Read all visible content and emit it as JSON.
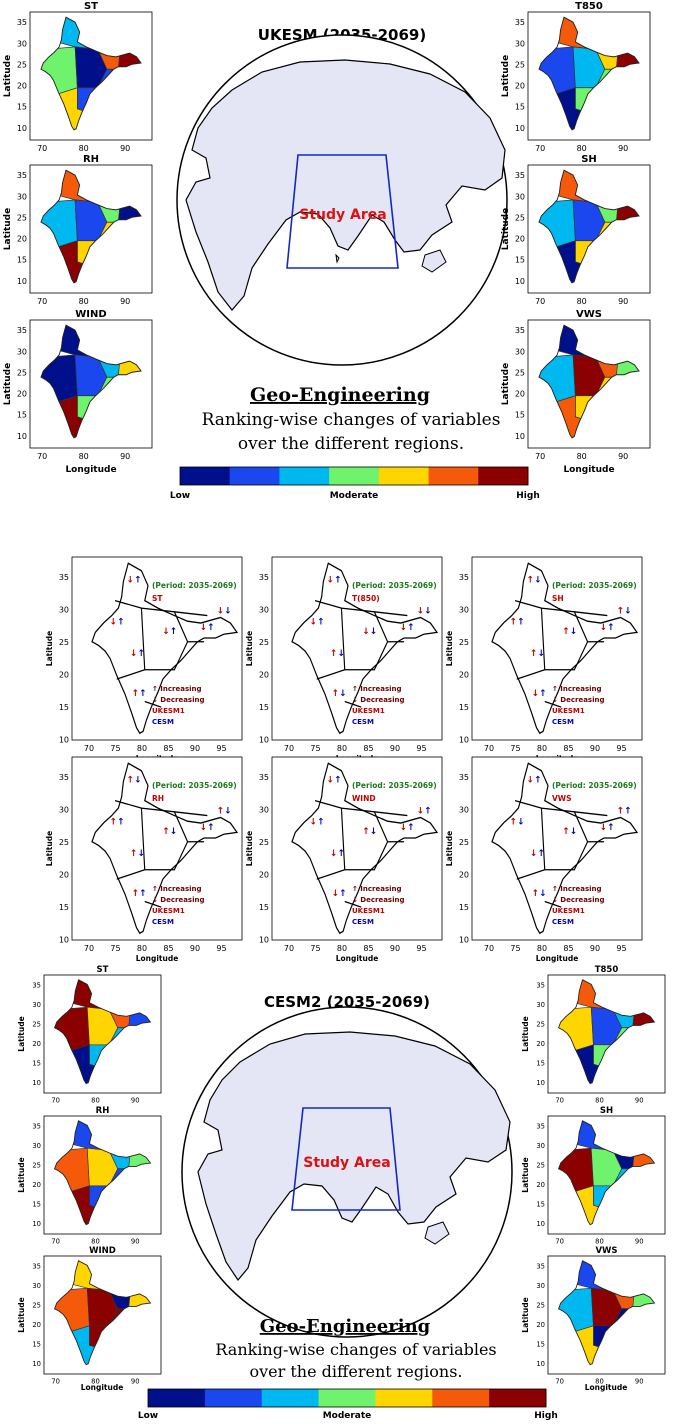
{
  "top_section": {
    "title": "UKESM (2035-2069)",
    "study_area_label": "Study Area",
    "heading": "Geo-Engineering",
    "caption_line1": "Ranking-wise changes of variables",
    "caption_line2": "over the different regions.",
    "maps": [
      {
        "title": "ST",
        "colors": [
          "#00b8f0",
          "#6ff36c",
          "#000f8a",
          "#f55a0a",
          "#8b0000",
          "#1b47ef",
          "#ffd500"
        ]
      },
      {
        "title": "T850",
        "colors": [
          "#f55a0a",
          "#1b47ef",
          "#00b8f0",
          "#ffd500",
          "#8b0000",
          "#6ff36c",
          "#000f8a"
        ]
      },
      {
        "title": "RH",
        "colors": [
          "#f55a0a",
          "#00b8f0",
          "#1b47ef",
          "#6ff36c",
          "#000f8a",
          "#ffd500",
          "#8b0000"
        ]
      },
      {
        "title": "SH",
        "colors": [
          "#f55a0a",
          "#00b8f0",
          "#1b47ef",
          "#6ff36c",
          "#8b0000",
          "#ffd500",
          "#000f8a"
        ]
      },
      {
        "title": "WIND",
        "colors": [
          "#000f8a",
          "#000f8a",
          "#1b47ef",
          "#00b8f0",
          "#ffd500",
          "#6ff36c",
          "#8b0000"
        ]
      },
      {
        "title": "VWS",
        "colors": [
          "#000f8a",
          "#00b8f0",
          "#8b0000",
          "#f55a0a",
          "#6ff36c",
          "#ffd500",
          "#f55a0a"
        ]
      }
    ],
    "axes": {
      "ylabel": "Latitude",
      "xlabel": "Longitude",
      "yticks": [
        "35",
        "30",
        "25",
        "20",
        "15",
        "10"
      ],
      "xticks": [
        "70",
        "80",
        "90"
      ]
    }
  },
  "colorbar": {
    "colors": [
      "#000f8a",
      "#1b47ef",
      "#00b8f0",
      "#6ff36c",
      "#ffd500",
      "#f55a0a",
      "#8b0000"
    ],
    "low": "Low",
    "moderate": "Moderate",
    "high": "High"
  },
  "middle_section": {
    "period": "(Period: 2035-2069)",
    "legend": {
      "increasing": "↑ Increasing",
      "decreasing": "↓ Decreasing",
      "model1": "UKESM1",
      "model2": "CESM"
    },
    "xticks": [
      "70",
      "75",
      "80",
      "85",
      "90",
      "95"
    ],
    "yticks": [
      "35",
      "30",
      "25",
      "20",
      "15",
      "10"
    ],
    "ylabel": "Latitude",
    "xlabel": "Longitude",
    "panels": [
      {
        "var": "ST",
        "arrows": [
          "↓↑",
          "↓↑",
          "↓↑",
          "↓↑",
          "↓↑",
          "↓↓",
          "↑↑"
        ]
      },
      {
        "var": "T(850)",
        "arrows": [
          "↓↑",
          "↓↑",
          "↓↓",
          "↑↓",
          "↓↑",
          "↓↓",
          "↑↓"
        ]
      },
      {
        "var": "SH",
        "arrows": [
          "↑↓",
          "↑↑",
          "↑↓",
          "↑↓",
          "↓↑",
          "↑↓",
          "↓↑"
        ]
      },
      {
        "var": "RH",
        "arrows": [
          "↑↓",
          "↑↑",
          "↑↓",
          "↑↓",
          "↓↑",
          "↑↓",
          "↑↑"
        ]
      },
      {
        "var": "WIND",
        "arrows": [
          "↓↑",
          "↓↑",
          "↑↓",
          "↓↑",
          "↓↑",
          "↓↑",
          "↓↑"
        ]
      },
      {
        "var": "VWS",
        "arrows": [
          "↓↑",
          "↑↓",
          "↑↓",
          "↓↑",
          "↓↑",
          "↑↑",
          "↑↓"
        ]
      }
    ]
  },
  "bottom_section": {
    "title": "CESM2 (2035-2069)",
    "study_area_label": "Study Area",
    "heading": "Geo-Engineering",
    "caption_line1": "Ranking-wise changes of variables",
    "caption_line2": "over the different regions.",
    "maps": [
      {
        "title": "ST",
        "colors": [
          "#8b0000",
          "#8b0000",
          "#ffd500",
          "#f55a0a",
          "#1b47ef",
          "#00b8f0",
          "#000f8a"
        ]
      },
      {
        "title": "T850",
        "colors": [
          "#f55a0a",
          "#ffd500",
          "#1b47ef",
          "#00b8f0",
          "#8b0000",
          "#6ff36c",
          "#000f8a"
        ]
      },
      {
        "title": "RH",
        "colors": [
          "#1b47ef",
          "#f55a0a",
          "#ffd500",
          "#00b8f0",
          "#6ff36c",
          "#1b47ef",
          "#8b0000"
        ]
      },
      {
        "title": "SH",
        "colors": [
          "#1b47ef",
          "#8b0000",
          "#6ff36c",
          "#000f8a",
          "#f55a0a",
          "#00b8f0",
          "#ffd500"
        ]
      },
      {
        "title": "WIND",
        "colors": [
          "#ffd500",
          "#f55a0a",
          "#8b0000",
          "#000f8a",
          "#ffd500",
          "#8b0000",
          "#00b8f0"
        ]
      },
      {
        "title": "VWS",
        "colors": [
          "#1b47ef",
          "#00b8f0",
          "#8b0000",
          "#f55a0a",
          "#6ff36c",
          "#000f8a",
          "#ffd500"
        ]
      }
    ],
    "axes": {
      "ylabel": "Latitude",
      "xlabel": "Longitude",
      "yticks": [
        "35",
        "30",
        "25",
        "20",
        "15",
        "10"
      ],
      "xticks": [
        "70",
        "80",
        "90"
      ]
    }
  }
}
